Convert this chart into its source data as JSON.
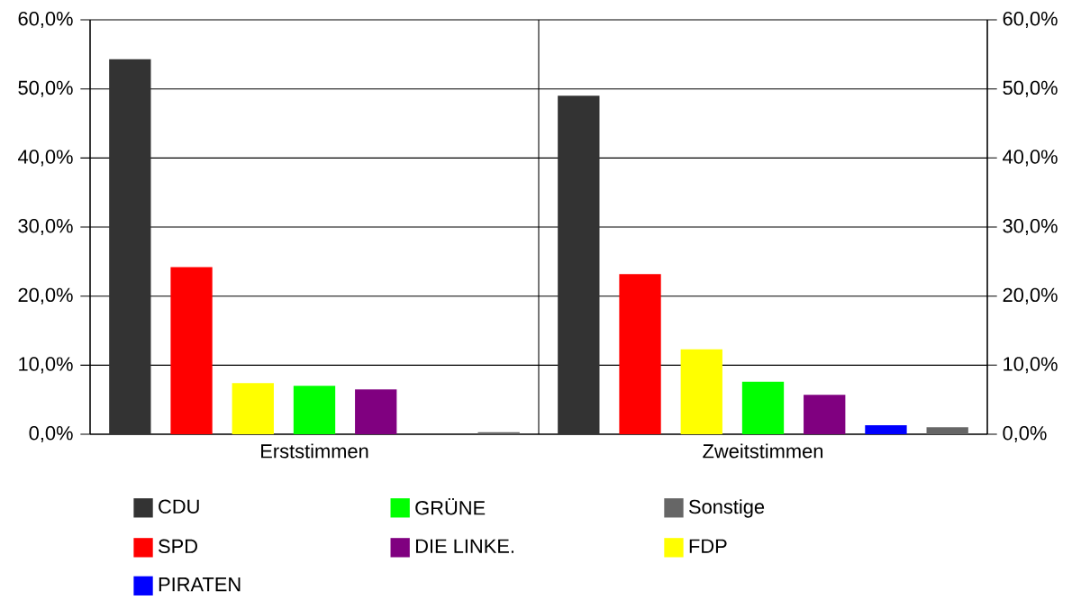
{
  "chart_data": {
    "type": "bar",
    "categories": [
      "Erststimmen",
      "Zweitstimmen"
    ],
    "series": [
      {
        "name": "CDU",
        "color": "#333333",
        "values": [
          54.3,
          49.0
        ]
      },
      {
        "name": "SPD",
        "color": "#ff0000",
        "values": [
          24.2,
          23.2
        ]
      },
      {
        "name": "FDP",
        "color": "#ffff00",
        "values": [
          7.4,
          12.3
        ]
      },
      {
        "name": "GRÜNE",
        "color": "#00ff00",
        "values": [
          7.0,
          7.6
        ]
      },
      {
        "name": "DIE LINKE.",
        "color": "#800080",
        "values": [
          6.5,
          5.7
        ]
      },
      {
        "name": "PIRATEN",
        "color": "#0000ff",
        "values": [
          null,
          1.3
        ]
      },
      {
        "name": "Sonstige",
        "color": "#666666",
        "values": [
          0.3,
          1.0
        ]
      }
    ],
    "ylim": [
      0,
      60
    ],
    "yticks": [
      {
        "value": 0,
        "label": "0,0%"
      },
      {
        "value": 10,
        "label": "10,0%"
      },
      {
        "value": 20,
        "label": "20,0%"
      },
      {
        "value": 30,
        "label": "30,0%"
      },
      {
        "value": 40,
        "label": "40,0%"
      },
      {
        "value": 50,
        "label": "50,0%"
      },
      {
        "value": 60,
        "label": "60,0%"
      }
    ],
    "y2lim": [
      0,
      60
    ],
    "y2ticks": [
      {
        "value": 0,
        "label": "0,0%"
      },
      {
        "value": 10,
        "label": "10,0%"
      },
      {
        "value": 20,
        "label": "20,0%"
      },
      {
        "value": 30,
        "label": "30,0%"
      },
      {
        "value": 40,
        "label": "40,0%"
      },
      {
        "value": 50,
        "label": "50,0%"
      },
      {
        "value": 60,
        "label": "60,0%"
      }
    ],
    "grid": "y",
    "legend": "bottom"
  }
}
